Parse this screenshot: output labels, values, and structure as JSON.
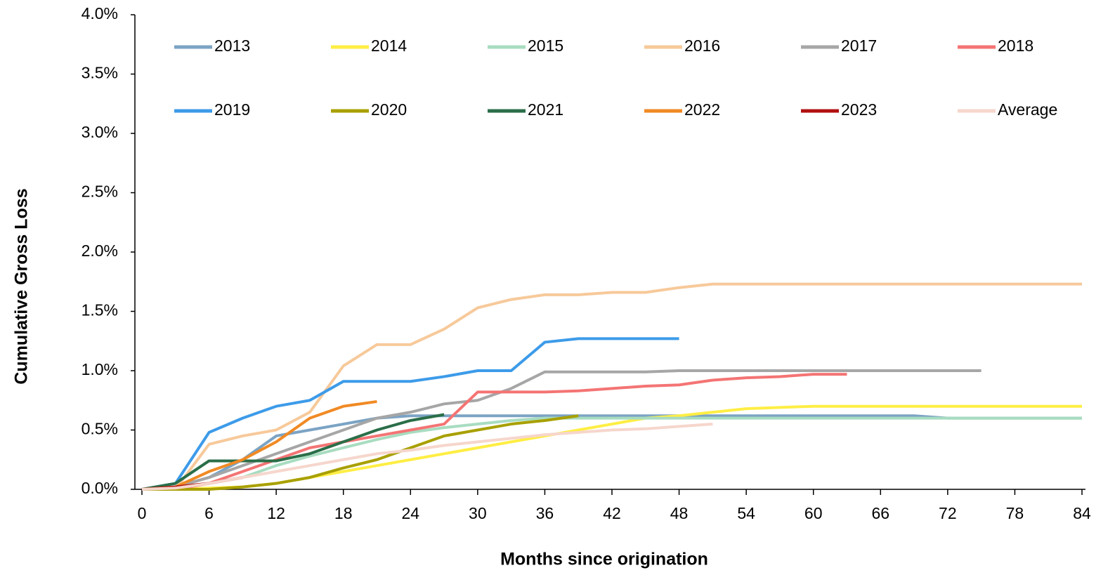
{
  "chart_data": {
    "type": "line",
    "ylabel": "Cumulative Gross Loss",
    "xlabel": "Months since origination",
    "x": [
      0,
      3,
      6,
      9,
      12,
      15,
      18,
      21,
      24,
      27,
      30,
      33,
      36,
      39,
      42,
      45,
      48,
      51,
      54,
      57,
      60,
      63,
      66,
      69,
      72,
      75,
      78,
      81,
      84
    ],
    "xlim": [
      0,
      84
    ],
    "xticks": [
      0,
      6,
      12,
      18,
      24,
      30,
      36,
      42,
      48,
      54,
      60,
      66,
      72,
      78,
      84
    ],
    "ylim": [
      0,
      4
    ],
    "yticks": [
      {
        "value": 0,
        "label": "0.0%"
      },
      {
        "value": 0.5,
        "label": "0.5%"
      },
      {
        "value": 1,
        "label": "1.0%"
      },
      {
        "value": 1.5,
        "label": "1.5%"
      },
      {
        "value": 2,
        "label": "2.0%"
      },
      {
        "value": 2.5,
        "label": "2.5%"
      },
      {
        "value": 3,
        "label": "3.0%"
      },
      {
        "value": 3.5,
        "label": "3.5%"
      },
      {
        "value": 4,
        "label": "4.0%"
      }
    ],
    "grid": false,
    "legend": "top",
    "series": [
      {
        "name": "2013",
        "color": "#7ba3c4",
        "values": [
          0,
          0.02,
          0.1,
          0.25,
          0.45,
          0.5,
          0.55,
          0.6,
          0.62,
          0.62,
          0.62,
          0.62,
          0.62,
          0.62,
          0.62,
          0.62,
          0.62,
          0.62,
          0.62,
          0.62,
          0.62,
          0.62,
          0.62,
          0.62,
          0.6,
          0.6,
          0.6,
          0.6,
          0.6
        ]
      },
      {
        "name": "2014",
        "color": "#ffee44",
        "values": [
          0,
          0,
          0.01,
          0.02,
          0.05,
          0.1,
          0.15,
          0.2,
          0.25,
          0.3,
          0.35,
          0.4,
          0.45,
          0.5,
          0.55,
          0.6,
          0.62,
          0.65,
          0.68,
          0.69,
          0.7,
          0.7,
          0.7,
          0.7,
          0.7,
          0.7,
          0.7,
          0.7,
          0.7
        ]
      },
      {
        "name": "2015",
        "color": "#a8dcc0",
        "values": [
          0,
          0.01,
          0.05,
          0.1,
          0.2,
          0.28,
          0.35,
          0.42,
          0.48,
          0.52,
          0.55,
          0.58,
          0.6,
          0.6,
          0.6,
          0.6,
          0.6,
          0.6,
          0.6,
          0.6,
          0.6,
          0.6,
          0.6,
          0.6,
          0.6,
          0.6,
          0.6,
          0.6,
          0.6
        ]
      },
      {
        "name": "2016",
        "color": "#f7c99a",
        "values": [
          0,
          0,
          0.38,
          0.45,
          0.5,
          0.65,
          1.04,
          1.22,
          1.22,
          1.35,
          1.53,
          1.6,
          1.64,
          1.64,
          1.66,
          1.66,
          1.7,
          1.73,
          1.73,
          1.73,
          1.73,
          1.73,
          1.73,
          1.73,
          1.73,
          1.73,
          1.73,
          1.73,
          1.73
        ]
      },
      {
        "name": "2017",
        "color": "#a6a6a6",
        "values": [
          0,
          0.02,
          0.1,
          0.2,
          0.3,
          0.4,
          0.5,
          0.6,
          0.65,
          0.72,
          0.75,
          0.85,
          0.99,
          0.99,
          0.99,
          0.99,
          1.0,
          1.0,
          1.0,
          1.0,
          1.0,
          1.0,
          1.0,
          1.0,
          1.0,
          1.0,
          null,
          null,
          null
        ]
      },
      {
        "name": "2018",
        "color": "#f47474",
        "values": [
          0,
          0,
          0.05,
          0.15,
          0.25,
          0.35,
          0.4,
          0.45,
          0.5,
          0.55,
          0.82,
          0.82,
          0.82,
          0.83,
          0.85,
          0.87,
          0.88,
          0.92,
          0.94,
          0.95,
          0.97,
          0.97,
          null,
          null,
          null,
          null,
          null,
          null,
          null
        ]
      },
      {
        "name": "2019",
        "color": "#3d9be9",
        "values": [
          0,
          0.05,
          0.48,
          0.6,
          0.7,
          0.75,
          0.91,
          0.91,
          0.91,
          0.95,
          1.0,
          1.0,
          1.24,
          1.27,
          1.27,
          1.27,
          1.27,
          null,
          null,
          null,
          null,
          null,
          null,
          null,
          null,
          null,
          null,
          null,
          null
        ]
      },
      {
        "name": "2020",
        "color": "#a8a000",
        "values": [
          0,
          0,
          0,
          0.02,
          0.05,
          0.1,
          0.18,
          0.25,
          0.35,
          0.45,
          0.5,
          0.55,
          0.58,
          0.62,
          null,
          null,
          null,
          null,
          null,
          null,
          null,
          null,
          null,
          null,
          null,
          null,
          null,
          null,
          null
        ]
      },
      {
        "name": "2021",
        "color": "#2a6e48",
        "values": [
          0,
          0.05,
          0.24,
          0.24,
          0.24,
          0.3,
          0.4,
          0.5,
          0.58,
          0.63,
          null,
          null,
          null,
          null,
          null,
          null,
          null,
          null,
          null,
          null,
          null,
          null,
          null,
          null,
          null,
          null,
          null,
          null,
          null
        ]
      },
      {
        "name": "2022",
        "color": "#f08a24",
        "values": [
          0,
          0.02,
          0.15,
          0.25,
          0.4,
          0.6,
          0.7,
          0.74,
          null,
          null,
          null,
          null,
          null,
          null,
          null,
          null,
          null,
          null,
          null,
          null,
          null,
          null,
          null,
          null,
          null,
          null,
          null,
          null,
          null
        ]
      },
      {
        "name": "2023",
        "color": "#b01010",
        "values": [
          0,
          0.02,
          0.05,
          0.1,
          null,
          null,
          null,
          null,
          null,
          null,
          null,
          null,
          null,
          null,
          null,
          null,
          null,
          null,
          null,
          null,
          null,
          null,
          null,
          null,
          null,
          null,
          null,
          null,
          null
        ]
      },
      {
        "name": "Average",
        "color": "#f6d6cc",
        "values": [
          0,
          0.01,
          0.05,
          0.1,
          0.15,
          0.2,
          0.25,
          0.3,
          0.33,
          0.37,
          0.4,
          0.43,
          0.46,
          0.48,
          0.5,
          0.51,
          0.53,
          0.55,
          null,
          null,
          null,
          null,
          null,
          null,
          null,
          null,
          null,
          null,
          null
        ]
      }
    ]
  }
}
